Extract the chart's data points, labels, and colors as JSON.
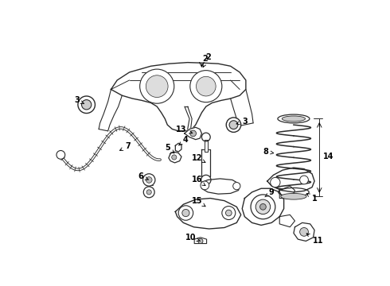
{
  "background_color": "#ffffff",
  "line_color": "#2a2a2a",
  "fig_width": 4.9,
  "fig_height": 3.6,
  "dpi": 100,
  "xlim": [
    0,
    490
  ],
  "ylim": [
    0,
    360
  ]
}
